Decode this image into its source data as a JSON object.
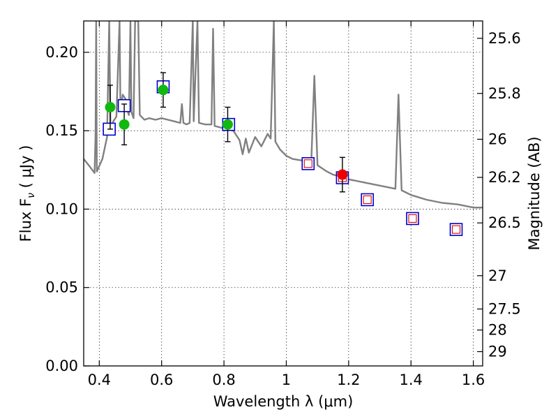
{
  "chart_data": {
    "type": "scatter",
    "xlabel": "Wavelength  λ (μm)",
    "ylabel": "Flux  F",
    "ylabel_sub": "ν",
    "ylabel_unit": " ( μJy )",
    "y2label": "Magnitude (AB)",
    "xlim": [
      0.35,
      1.63
    ],
    "ylim": [
      0.0,
      0.22
    ],
    "grid": true,
    "x_ticks": [
      0.4,
      0.6,
      0.8,
      1.0,
      1.2,
      1.4,
      1.6
    ],
    "x_tick_labels": [
      "0.4",
      "0.6",
      "0.8",
      "1",
      "1.2",
      "1.4",
      "1.6"
    ],
    "y_ticks": [
      0.0,
      0.05,
      0.1,
      0.15,
      0.2
    ],
    "y_tick_labels": [
      "0.00",
      "0.05",
      "0.10",
      "0.15",
      "0.20"
    ],
    "y2_tick_labels": [
      "25.6",
      "25.8",
      "26",
      "26.2",
      "26.5",
      "27",
      "27.5",
      "28",
      "29"
    ],
    "y2_tick_mags": [
      25.6,
      25.8,
      26.0,
      26.2,
      26.5,
      27.0,
      27.5,
      28.0,
      29.0
    ],
    "colors": {
      "spectrum": "#808080",
      "observed_green": "#10b810",
      "observed_red": "#ee0000",
      "model_box": "#0000cc",
      "model_inner": "#dd0000"
    },
    "series": [
      {
        "style": "line",
        "color_key": "spectrum",
        "points": [
          [
            0.35,
            0.132
          ],
          [
            0.37,
            0.127
          ],
          [
            0.385,
            0.123
          ],
          [
            0.388,
            0.148
          ],
          [
            0.39,
            0.22
          ],
          [
            0.392,
            0.124
          ],
          [
            0.41,
            0.132
          ],
          [
            0.425,
            0.146
          ],
          [
            0.432,
            0.22
          ],
          [
            0.436,
            0.15
          ],
          [
            0.445,
            0.156
          ],
          [
            0.455,
            0.159
          ],
          [
            0.465,
            0.22
          ],
          [
            0.468,
            0.163
          ],
          [
            0.475,
            0.173
          ],
          [
            0.485,
            0.17
          ],
          [
            0.49,
            0.163
          ],
          [
            0.495,
            0.16
          ],
          [
            0.5,
            0.22
          ],
          [
            0.503,
            0.162
          ],
          [
            0.51,
            0.158
          ],
          [
            0.515,
            0.22
          ],
          [
            0.52,
            0.22
          ],
          [
            0.525,
            0.22
          ],
          [
            0.53,
            0.16
          ],
          [
            0.545,
            0.157
          ],
          [
            0.56,
            0.158
          ],
          [
            0.58,
            0.157
          ],
          [
            0.6,
            0.158
          ],
          [
            0.62,
            0.157
          ],
          [
            0.64,
            0.156
          ],
          [
            0.66,
            0.155
          ],
          [
            0.665,
            0.167
          ],
          [
            0.67,
            0.155
          ],
          [
            0.68,
            0.154
          ],
          [
            0.69,
            0.155
          ],
          [
            0.7,
            0.22
          ],
          [
            0.703,
            0.156
          ],
          [
            0.715,
            0.22
          ],
          [
            0.72,
            0.155
          ],
          [
            0.74,
            0.154
          ],
          [
            0.76,
            0.154
          ],
          [
            0.765,
            0.215
          ],
          [
            0.77,
            0.153
          ],
          [
            0.79,
            0.152
          ],
          [
            0.81,
            0.151
          ],
          [
            0.83,
            0.15
          ],
          [
            0.84,
            0.147
          ],
          [
            0.85,
            0.144
          ],
          [
            0.86,
            0.135
          ],
          [
            0.87,
            0.145
          ],
          [
            0.88,
            0.136
          ],
          [
            0.9,
            0.146
          ],
          [
            0.92,
            0.14
          ],
          [
            0.94,
            0.148
          ],
          [
            0.95,
            0.145
          ],
          [
            0.96,
            0.22
          ],
          [
            0.965,
            0.143
          ],
          [
            0.98,
            0.138
          ],
          [
            1.0,
            0.134
          ],
          [
            1.02,
            0.132
          ],
          [
            1.05,
            0.131
          ],
          [
            1.08,
            0.129
          ],
          [
            1.09,
            0.185
          ],
          [
            1.1,
            0.128
          ],
          [
            1.13,
            0.124
          ],
          [
            1.15,
            0.122
          ],
          [
            1.17,
            0.121
          ],
          [
            1.19,
            0.12
          ],
          [
            1.2,
            0.119
          ],
          [
            1.25,
            0.117
          ],
          [
            1.3,
            0.115
          ],
          [
            1.35,
            0.113
          ],
          [
            1.36,
            0.173
          ],
          [
            1.37,
            0.112
          ],
          [
            1.4,
            0.109
          ],
          [
            1.45,
            0.106
          ],
          [
            1.5,
            0.104
          ],
          [
            1.55,
            0.103
          ],
          [
            1.6,
            0.101
          ],
          [
            1.63,
            0.101
          ]
        ]
      },
      {
        "style": "box",
        "points": [
          [
            0.432,
            0.151
          ],
          [
            0.48,
            0.166
          ],
          [
            0.605,
            0.178
          ],
          [
            0.815,
            0.154
          ],
          [
            1.07,
            0.129
          ],
          [
            1.18,
            0.12
          ],
          [
            1.26,
            0.106
          ],
          [
            1.405,
            0.094
          ],
          [
            1.545,
            0.087
          ]
        ],
        "inner": [
          false,
          false,
          false,
          false,
          true,
          true,
          true,
          true,
          true
        ]
      },
      {
        "style": "errorbar",
        "color_key": "observed_green",
        "points": [
          [
            0.435,
            0.165,
            0.014
          ],
          [
            0.48,
            0.154,
            0.013
          ],
          [
            0.605,
            0.176,
            0.011
          ],
          [
            0.812,
            0.154,
            0.011
          ]
        ]
      },
      {
        "style": "errorbar",
        "color_key": "observed_red",
        "points": [
          [
            1.18,
            0.122,
            0.011
          ]
        ]
      }
    ]
  }
}
